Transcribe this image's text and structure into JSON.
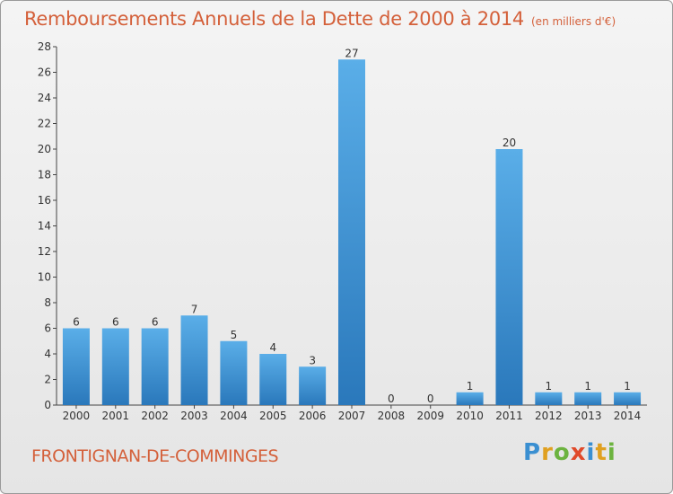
{
  "header": {
    "title": "Remboursements Annuels de la Dette de 2000 à 2014",
    "unit": "(en milliers d'€)"
  },
  "footer": {
    "commune": "FRONTIGNAN-DE-COMMINGES",
    "logo_letters": [
      {
        "char": "P",
        "color": "#3a8fd1"
      },
      {
        "char": "r",
        "color": "#e0a020"
      },
      {
        "char": "o",
        "color": "#6cb33f"
      },
      {
        "char": "x",
        "color": "#e04a2a"
      },
      {
        "char": "i",
        "color": "#3a8fd1"
      },
      {
        "char": "t",
        "color": "#e0a020"
      },
      {
        "char": "i",
        "color": "#6cb33f"
      }
    ]
  },
  "chart_data": {
    "type": "bar",
    "categories": [
      "2000",
      "2001",
      "2002",
      "2003",
      "2004",
      "2005",
      "2006",
      "2007",
      "2008",
      "2009",
      "2010",
      "2011",
      "2012",
      "2013",
      "2014"
    ],
    "values": [
      6,
      6,
      6,
      7,
      5,
      4,
      3,
      27,
      0,
      0,
      1,
      20,
      1,
      1,
      1
    ],
    "title": "Remboursements Annuels de la Dette de 2000 à 2014",
    "ylim": [
      0,
      28
    ],
    "yticks": [
      0,
      2,
      4,
      6,
      8,
      10,
      12,
      14,
      16,
      18,
      20,
      22,
      24,
      26,
      28
    ],
    "grid": false,
    "colors": {
      "bar_light": "#5aaee8",
      "bar_dark": "#2a78bb",
      "axis": "#444444",
      "text": "#333333",
      "accent": "#d4603a"
    }
  }
}
